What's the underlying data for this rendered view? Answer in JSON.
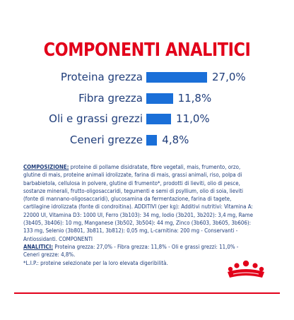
{
  "title": "COMPONENTI ANALITICI",
  "colors": {
    "title": "#e2001a",
    "text": "#1f3d7a",
    "bar": "#1a6fd8"
  },
  "chart_data": {
    "type": "bar",
    "orientation": "horizontal",
    "categories": [
      "Proteina grezza",
      "Fibra grezza",
      "Oli e grassi grezzi",
      "Ceneri grezze"
    ],
    "values": [
      27.0,
      11.8,
      11.0,
      4.8
    ],
    "value_labels": [
      "27,0%",
      "11,8%",
      "11,0%",
      "4,8%"
    ],
    "unit": "%"
  },
  "composition": {
    "heading1": "COMPOSIZIONE:",
    "body1": " proteine di pollame disidratate, fibre vegetali, mais, frumento, orzo, glutine di mais, proteine animali idrolizzate, farina di mais, grassi animali, riso, polpa di barbabietola, cellulosa in polvere, glutine di frumento*, prodotti di lieviti, olio di pesce, sostanze minerali, frutto-oligosaccaridi, tegumenti e semi di psyllium, olio di soia, lieviti (fonte di mannano-oligosaccaridi), glucosamina da fermentazione, farina di tagete, cartilagine idrolizzata (fonte di condroitina). ADDITIVI (per kg): Additivi nutritivi: Vitamina A: 22000 UI, Vitamina D3: 1000 UI, Ferro (3b103): 34 mg, Iodio (3b201, 3b202): 3,4 mg, Rame (3b405, 3b406): 10 mg, Manganese (3b502, 3b504): 44 mg, Zinco (3b603, 3b605, 3b606): 133 mg, Selenio (3b801, 3b811, 3b812): 0,05 mg, L-carnitina: 200 mg - Conservanti - Antiossidanti. COMPONENTI",
    "heading2": "ANALITICI:",
    "body2": " Proteina grezza: 27,0% - Fibra grezza: 11,8% - Oli e grassi grezzi: 11,0% - Ceneri grezze: 4,8%.",
    "footnote": "*L.I.P.: proteine selezionate per la loro elevata digeribilità."
  }
}
